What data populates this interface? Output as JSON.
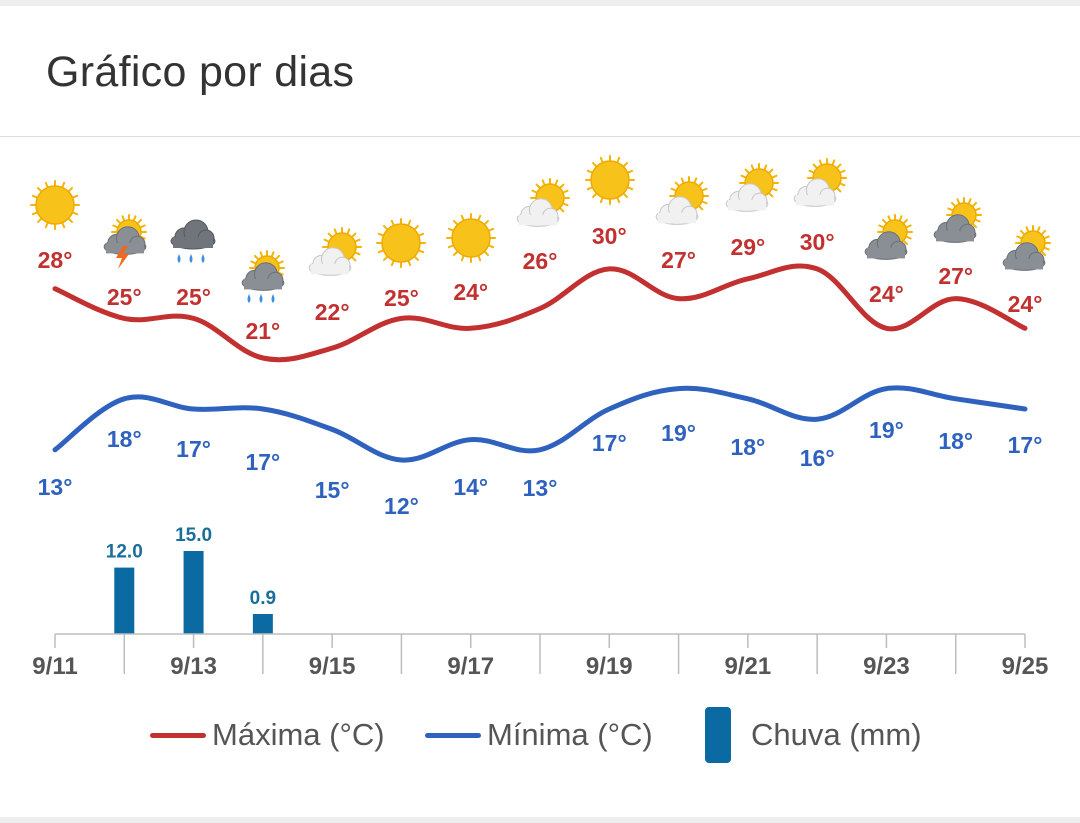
{
  "title": "Gráfico por dias",
  "legend": {
    "max": "Máxima (°C)",
    "min": "Mínima (°C)",
    "rain": "Chuva (mm)"
  },
  "colors": {
    "max": "#c23030",
    "min": "#2f62bf",
    "rain": "#0a6aa1"
  },
  "chart_data": {
    "type": "line",
    "x_ticks": [
      "9/11",
      "9/13",
      "9/15",
      "9/17",
      "9/19",
      "9/21",
      "9/23",
      "9/25"
    ],
    "days": [
      "9/11",
      "9/12",
      "9/13",
      "9/14",
      "9/15",
      "9/16",
      "9/17",
      "9/18",
      "9/19",
      "9/20",
      "9/21",
      "9/22",
      "9/23",
      "9/24",
      "9/25"
    ],
    "icons": [
      "sun-icon",
      "thunderstorm-icon",
      "rain-cloud-icon",
      "rain-sun-cloud-icon",
      "partly-cloudy-icon",
      "sun-icon",
      "sun-icon",
      "partly-cloudy-icon",
      "sun-icon",
      "partly-cloudy-icon",
      "partly-cloudy-icon",
      "partly-cloudy-icon",
      "cloudy-sun-icon",
      "cloudy-sun-icon",
      "cloudy-sun-icon"
    ],
    "series": [
      {
        "name": "Máxima (°C)",
        "labels": [
          "28°",
          "25°",
          "25°",
          "21°",
          "22°",
          "25°",
          "24°",
          "26°",
          "30°",
          "27°",
          "29°",
          "30°",
          "24°",
          "27°",
          "24°"
        ]
      },
      {
        "name": "Mínima (°C)",
        "labels": [
          "13°",
          "18°",
          "17°",
          "17°",
          "15°",
          "12°",
          "14°",
          "13°",
          "17°",
          "19°",
          "18°",
          "16°",
          "19°",
          "18°",
          "17°"
        ]
      },
      {
        "name": "Chuva (mm)",
        "type": "bar",
        "values": [
          null,
          12.0,
          15.0,
          0.9,
          null,
          null,
          null,
          null,
          null,
          null,
          null,
          null,
          null,
          null,
          null
        ],
        "labels": [
          "",
          "12.0",
          "15.0",
          "0.9",
          "",
          "",
          "",
          "",
          "",
          "",
          "",
          "",
          "",
          "",
          ""
        ]
      }
    ]
  }
}
